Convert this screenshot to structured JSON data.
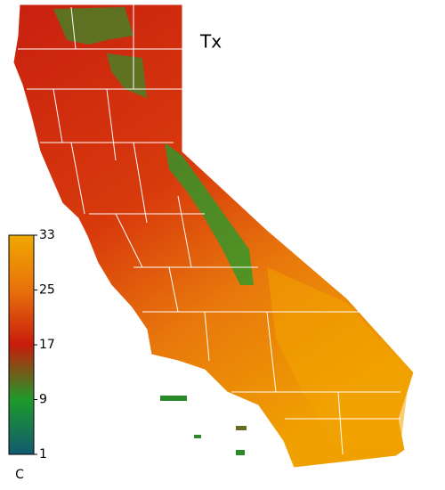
{
  "map": {
    "title": "Tx",
    "colorbar": {
      "lim": [
        1,
        33
      ],
      "ticks": [
        1,
        9,
        17,
        25,
        33
      ],
      "unit": "C",
      "colors": [
        "#125a70",
        "#1e9a2a",
        "#c81c0c",
        "#e8720c",
        "#f0a800"
      ]
    }
  }
}
